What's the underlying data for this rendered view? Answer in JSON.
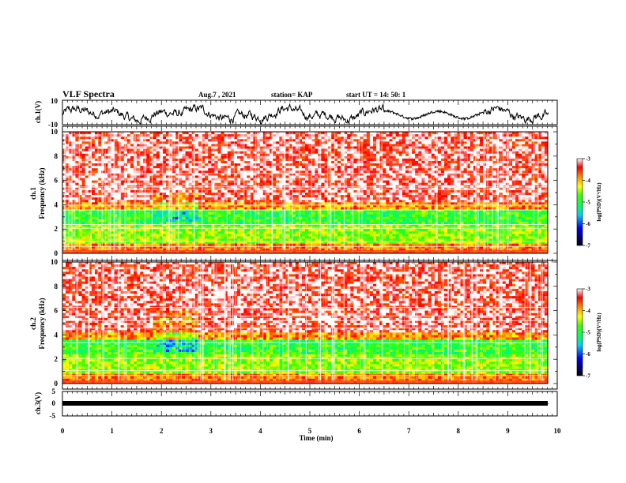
{
  "header": {
    "title": "VLF Spectra",
    "date": "Aug.7  , 2021",
    "station": "station= KAP",
    "start": "start  UT  =   14: 50: 1"
  },
  "chart_data": [
    {
      "type": "line",
      "panel": "ch1-waveform",
      "ylabel": "ch.1(V)",
      "ylim": [
        -10,
        10
      ],
      "yticks": [
        "10",
        "-10"
      ],
      "xlim": [
        0,
        10
      ]
    },
    {
      "type": "heatmap",
      "panel": "ch1-spectrogram",
      "ylabel": "ch.1\nFrequency (kHz)",
      "ylabel_lines": [
        "ch.1",
        "Frequency  (kHz)"
      ],
      "ylim": [
        0,
        10
      ],
      "yticks": [
        "0",
        "2",
        "4",
        "6",
        "8",
        "10"
      ],
      "xlim": [
        0,
        10
      ],
      "colorbar": {
        "label": "log(PSD)(V²/Hz)",
        "range": [
          -7,
          -3
        ],
        "ticks": [
          "-3",
          "-4",
          "-5",
          "-6",
          "-7"
        ]
      }
    },
    {
      "type": "heatmap",
      "panel": "ch2-spectrogram",
      "ylabel_lines": [
        "ch.2",
        "Frequency  (kHz)"
      ],
      "ylim": [
        0,
        10
      ],
      "yticks": [
        "0",
        "2",
        "4",
        "6",
        "8",
        "10"
      ],
      "xlim": [
        0,
        10
      ],
      "colorbar": {
        "label": "log(PSD)(V²/Hz)",
        "range": [
          -7,
          -3
        ],
        "ticks": [
          "-3",
          "-4",
          "-5",
          "-6",
          "-7"
        ]
      }
    },
    {
      "type": "line",
      "panel": "ch3-waveform",
      "ylabel": "ch.3(V)",
      "ylim": [
        -5,
        5
      ],
      "yticks": [
        "5",
        "0",
        "-5"
      ],
      "xlim": [
        0,
        10
      ],
      "xlabel": "Time  (min)",
      "xticks": [
        "0",
        "1",
        "2",
        "3",
        "4",
        "5",
        "6",
        "7",
        "8",
        "9",
        "10"
      ]
    }
  ]
}
